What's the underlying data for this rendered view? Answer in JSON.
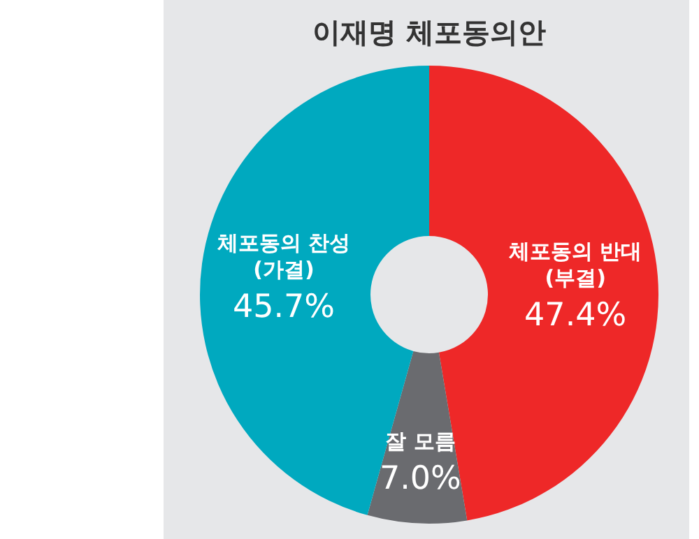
{
  "chart_data": {
    "type": "donut",
    "title": "이재명 체포동의안",
    "categories": [
      "체포동의 반대\n(부결)",
      "잘 모름",
      "체포동의 찬성\n(가결)"
    ],
    "values": [
      47.4,
      7.0,
      45.7
    ],
    "colors": [
      "#ee2828",
      "#6a6b6f",
      "#00a9bf"
    ],
    "value_labels": [
      "47.4%",
      "7.0%",
      "45.7%"
    ]
  }
}
